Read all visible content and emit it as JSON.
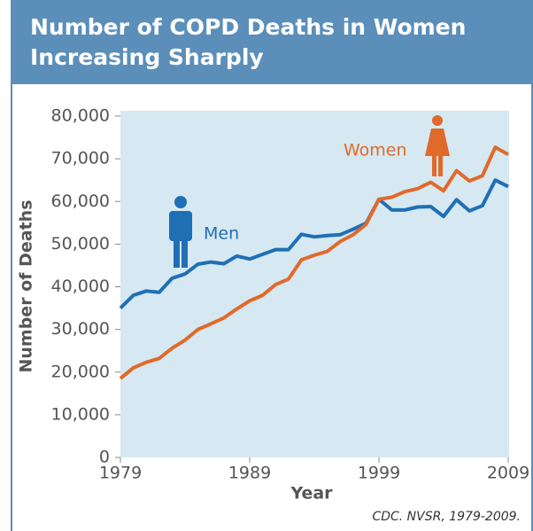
{
  "chart_data": {
    "type": "line",
    "title": "Number of COPD Deaths in Women Increasing Sharply",
    "x_label": "Year",
    "y_label": "Number of Deaths",
    "source": "CDC. NVSR, 1979-2009.",
    "x": [
      1979,
      1980,
      1981,
      1982,
      1983,
      1984,
      1985,
      1986,
      1987,
      1988,
      1989,
      1990,
      1991,
      1992,
      1993,
      1994,
      1995,
      1996,
      1997,
      1998,
      1999,
      2000,
      2001,
      2002,
      2003,
      2004,
      2005,
      2006,
      2007,
      2008,
      2009
    ],
    "series": [
      {
        "name": "Men",
        "color": "#1f6fb5",
        "values": [
          35000,
          38000,
          39000,
          38700,
          42000,
          43000,
          45300,
          45800,
          45400,
          47200,
          46500,
          47600,
          48700,
          48700,
          52300,
          51700,
          52000,
          52200,
          53500,
          54900,
          60500,
          58000,
          58000,
          58700,
          58800,
          56500,
          60400,
          57800,
          59000,
          65000,
          63500
        ]
      },
      {
        "name": "Women",
        "color": "#e06a2a",
        "values": [
          18500,
          21000,
          22300,
          23200,
          25600,
          27500,
          30000,
          31300,
          32700,
          34800,
          36700,
          38000,
          40500,
          41800,
          46300,
          47400,
          48300,
          50600,
          52200,
          54600,
          60500,
          61000,
          62300,
          63000,
          64500,
          62500,
          67200,
          64800,
          66000,
          72700,
          71000
        ]
      }
    ],
    "xlim": [
      1979,
      2009
    ],
    "xticks": [
      1979,
      1989,
      1999,
      2009
    ],
    "ylim": [
      0,
      80000
    ],
    "yticks": [
      0,
      {
        "value": 10000,
        "label": "10,000"
      },
      {
        "value": 20000,
        "label": "20,000"
      },
      {
        "value": 30000,
        "label": "30,000"
      },
      {
        "value": 40000,
        "label": "40,000"
      },
      {
        "value": 50000,
        "label": "50,000"
      },
      {
        "value": 60000,
        "label": "60,000"
      },
      {
        "value": 70000,
        "label": "70,000"
      },
      {
        "value": 80000,
        "label": "80,000"
      }
    ],
    "grid": false
  }
}
